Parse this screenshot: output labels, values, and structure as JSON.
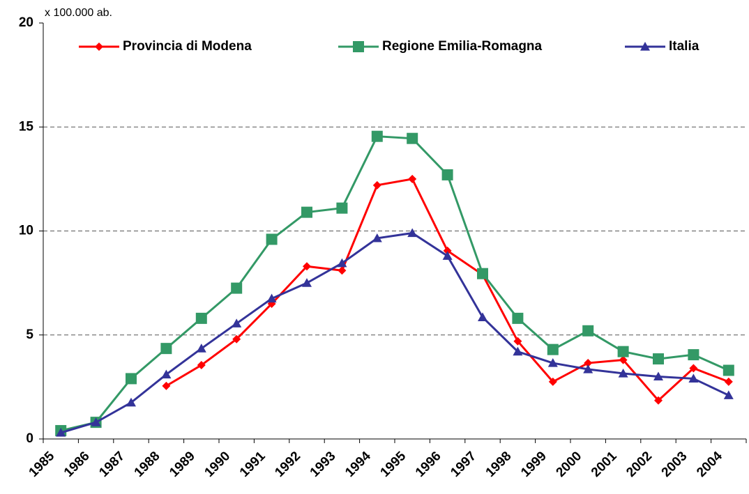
{
  "chart_data": {
    "type": "line",
    "y_label": "x 100.000 ab.",
    "categories": [
      "1985",
      "1986",
      "1987",
      "1988",
      "1989",
      "1990",
      "1991",
      "1992",
      "1993",
      "1994",
      "1995",
      "1996",
      "1997",
      "1998",
      "1999",
      "2000",
      "2001",
      "2002",
      "2003",
      "2004"
    ],
    "series": [
      {
        "name": "Provincia di Modena",
        "color": "#ff0000",
        "marker": "diamond",
        "values": [
          null,
          null,
          null,
          2.55,
          3.55,
          4.8,
          6.5,
          8.3,
          8.1,
          12.2,
          12.5,
          9.05,
          7.9,
          4.7,
          2.75,
          3.65,
          3.8,
          1.85,
          3.4,
          2.75
        ]
      },
      {
        "name": "Regione Emilia-Romagna",
        "color": "#339966",
        "marker": "square",
        "values": [
          0.4,
          0.8,
          2.9,
          4.35,
          5.8,
          7.25,
          9.6,
          10.9,
          11.1,
          14.55,
          14.45,
          12.7,
          7.95,
          5.8,
          4.3,
          5.2,
          4.2,
          3.85,
          4.05,
          3.3
        ]
      },
      {
        "name": "Italia",
        "color": "#333399",
        "marker": "triangle",
        "values": [
          0.3,
          0.8,
          1.75,
          3.1,
          4.35,
          5.55,
          6.75,
          7.5,
          8.45,
          9.65,
          9.9,
          8.8,
          5.85,
          4.2,
          3.65,
          3.35,
          3.15,
          3.0,
          2.9,
          2.1
        ]
      }
    ],
    "ylim": [
      0,
      20
    ],
    "yticks": [
      0,
      5,
      10,
      15,
      20
    ],
    "grid": true,
    "legend": "top"
  }
}
